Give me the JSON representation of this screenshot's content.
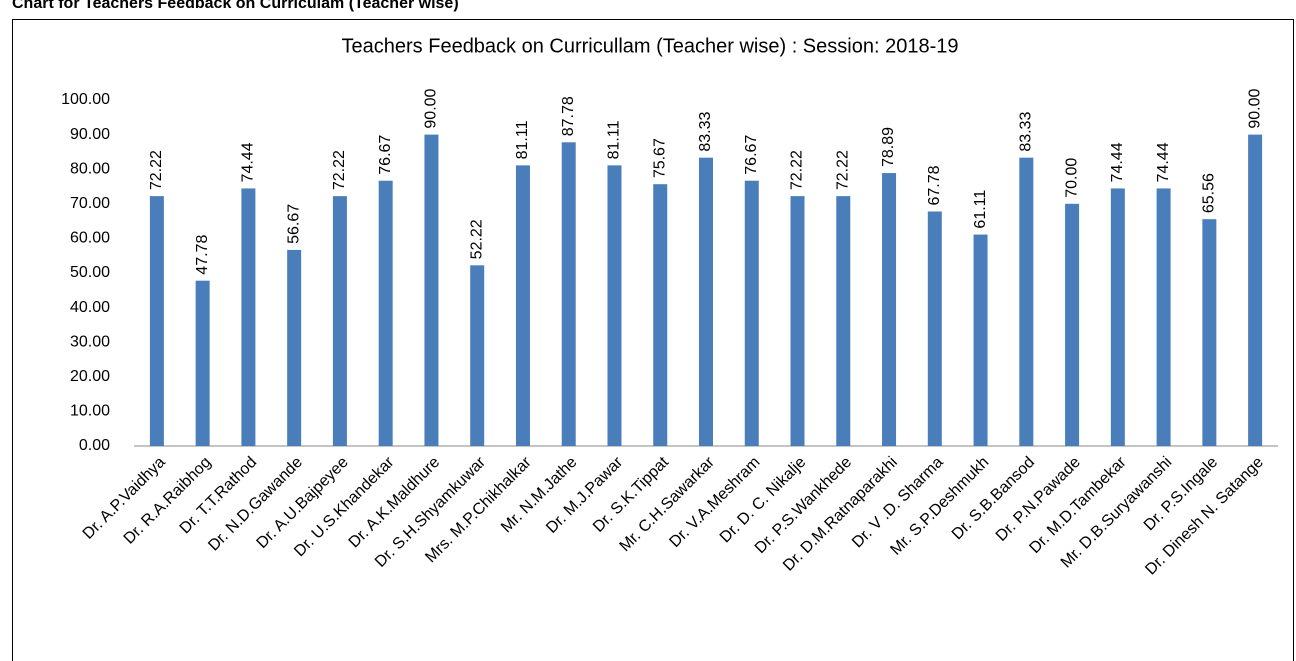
{
  "heading": "Chart for Teachers Feedback on Curriculam (Teacher wise)",
  "chart_data": {
    "type": "bar",
    "title": "Teachers Feedback on Curricullam  (Teacher wise) : Session: 2018-19",
    "categories": [
      "Dr. A.P.Vaidhya",
      "Dr. R.A.Raibhog",
      "Dr. T.T.Rathod",
      "Dr. N.D.Gawande",
      "Dr. A.U.Bajpeyee",
      "Dr. U.S.Khandekar",
      "Dr. A.K.Maldhure",
      "Dr. S.H.Shyamkuwar",
      "Mrs. M.P.Chikhalkar",
      "Mr. N.M.Jathe",
      "Dr. M.J.Pawar",
      "Dr. S.K.Tippat",
      "Mr. C.H.Sawarkar",
      "Dr. V.A.Meshram",
      "Dr. D. C. Nikalje",
      "Dr. P.S.Wankhede",
      "Dr. D.M.Ratnaparakhi",
      "Dr. V .D. Sharma",
      "Mr. S.P.Deshmukh",
      "Dr. S.B.Bansod",
      "Dr. P.N.Pawade",
      "Dr. M.D.Tambekar",
      "Mr. D.B.Suryawanshi",
      "Dr. P.S.Ingale",
      "Dr. Dinesh N. Satange"
    ],
    "values": [
      72.22,
      47.78,
      74.44,
      56.67,
      72.22,
      76.67,
      90,
      52.22,
      81.11,
      87.78,
      81.11,
      75.67,
      83.33,
      76.67,
      72.22,
      72.22,
      78.89,
      67.78,
      61.11,
      83.33,
      70,
      74.44,
      74.44,
      65.56,
      90
    ],
    "value_labels": [
      "72.22",
      "47.78",
      "74.44",
      "56.67",
      "72.22",
      "76.67",
      "90.00",
      "52.22",
      "81.11",
      "87.78",
      "81.11",
      "75.67",
      "83.33",
      "76.67",
      "72.22",
      "72.22",
      "78.89",
      "67.78",
      "61.11",
      "83.33",
      "70.00",
      "74.44",
      "74.44",
      "65.56",
      "90.00"
    ],
    "color": "#4a7ebb",
    "ylim": [
      0,
      100
    ],
    "yticks": [
      {
        "value": 0,
        "label": "0.00"
      },
      {
        "value": 10,
        "label": "10.00"
      },
      {
        "value": 20,
        "label": "20.00"
      },
      {
        "value": 30,
        "label": "30.00"
      },
      {
        "value": 40,
        "label": "40.00"
      },
      {
        "value": 50,
        "label": "50.00"
      },
      {
        "value": 60,
        "label": "60.00"
      },
      {
        "value": 70,
        "label": "70.00"
      },
      {
        "value": 80,
        "label": "80.00"
      },
      {
        "value": 90,
        "label": "90.00"
      },
      {
        "value": 100,
        "label": "100.00"
      }
    ],
    "grid": false
  }
}
